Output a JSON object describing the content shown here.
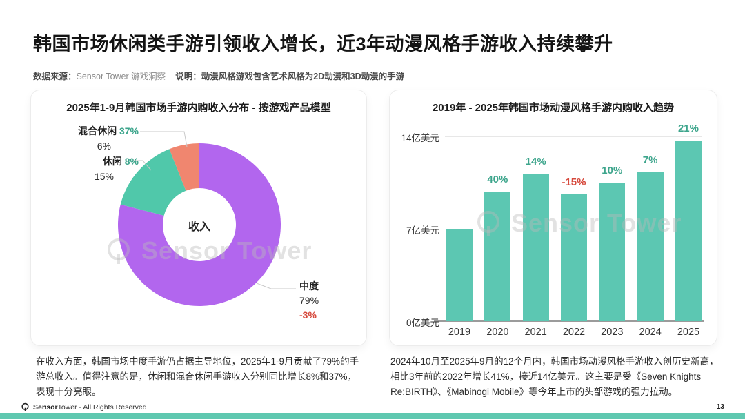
{
  "header": {
    "title": "韩国市场休闲类手游引领收入增长，近3年动漫风格手游收入持续攀升",
    "source_label": "数据来源：",
    "source_value": "Sensor Tower 游戏洞察",
    "note_label": "说明：",
    "note_value": "动漫风格游戏包含艺术风格为2D动漫和3D动漫的手游"
  },
  "watermark": {
    "text": "Sensor Tower"
  },
  "chart_data": [
    {
      "type": "pie",
      "donut": true,
      "title": "2025年1-9月韩国市场手游内购收入分布 - 按游戏产品模型",
      "center_label": "收入",
      "start_angle": "top",
      "direction": "clockwise",
      "segments": [
        {
          "label": "中度",
          "share_pct": 79,
          "share_label": "79%",
          "yoy_label": "-3%",
          "color": "#b266ee"
        },
        {
          "label": "休闲",
          "share_pct": 15,
          "share_label": "15%",
          "yoy_label": "8%",
          "color": "#50c8aa"
        },
        {
          "label": "混合休闲",
          "share_pct": 6,
          "share_label": "6%",
          "yoy_label": "37%",
          "color": "#f0866f"
        }
      ],
      "label_colors": {
        "positive": "#3da58c",
        "negative": "#d6493c"
      }
    },
    {
      "type": "bar",
      "title": "2019年 - 2025年韩国市场动漫风格手游内购收入趋势",
      "categories": [
        "2019",
        "2020",
        "2021",
        "2022",
        "2023",
        "2024",
        "2025"
      ],
      "values": [
        7.0,
        9.8,
        11.2,
        9.6,
        10.5,
        11.3,
        13.7
      ],
      "unit": "亿美元",
      "growth_labels": [
        "",
        "40%",
        "14%",
        "-15%",
        "10%",
        "7%",
        "21%"
      ],
      "yticks": [
        {
          "value": 0,
          "label": "0亿美元"
        },
        {
          "value": 7,
          "label": "7亿美元"
        },
        {
          "value": 14,
          "label": "14亿美元"
        }
      ],
      "ymax": 14,
      "bar_color": "#5cc7b2",
      "label_colors": {
        "positive": "#3da58c",
        "negative": "#d6493c"
      },
      "grid": true,
      "legend": "none"
    }
  ],
  "commentary": {
    "left": "在收入方面，韩国市场中度手游仍占据主导地位，2025年1-9月贡献了79%的手游总收入。值得注意的是，休闲和混合休闲手游收入分别同比增长8%和37%，表现十分亮眼。",
    "right": "2024年10月至2025年9月的12个月内，韩国市场动漫风格手游收入创历史新高，相比3年前的2022年增长41%，接近14亿美元。这主要是受《Seven Knights Re:BIRTH》、《Mabinogi Mobile》等今年上市的头部游戏的强力拉动。"
  },
  "footer": {
    "brand_bold": "Sensor",
    "brand_rest": "Tower",
    "rights": "- All Rights Reserved",
    "page_number": "13"
  }
}
